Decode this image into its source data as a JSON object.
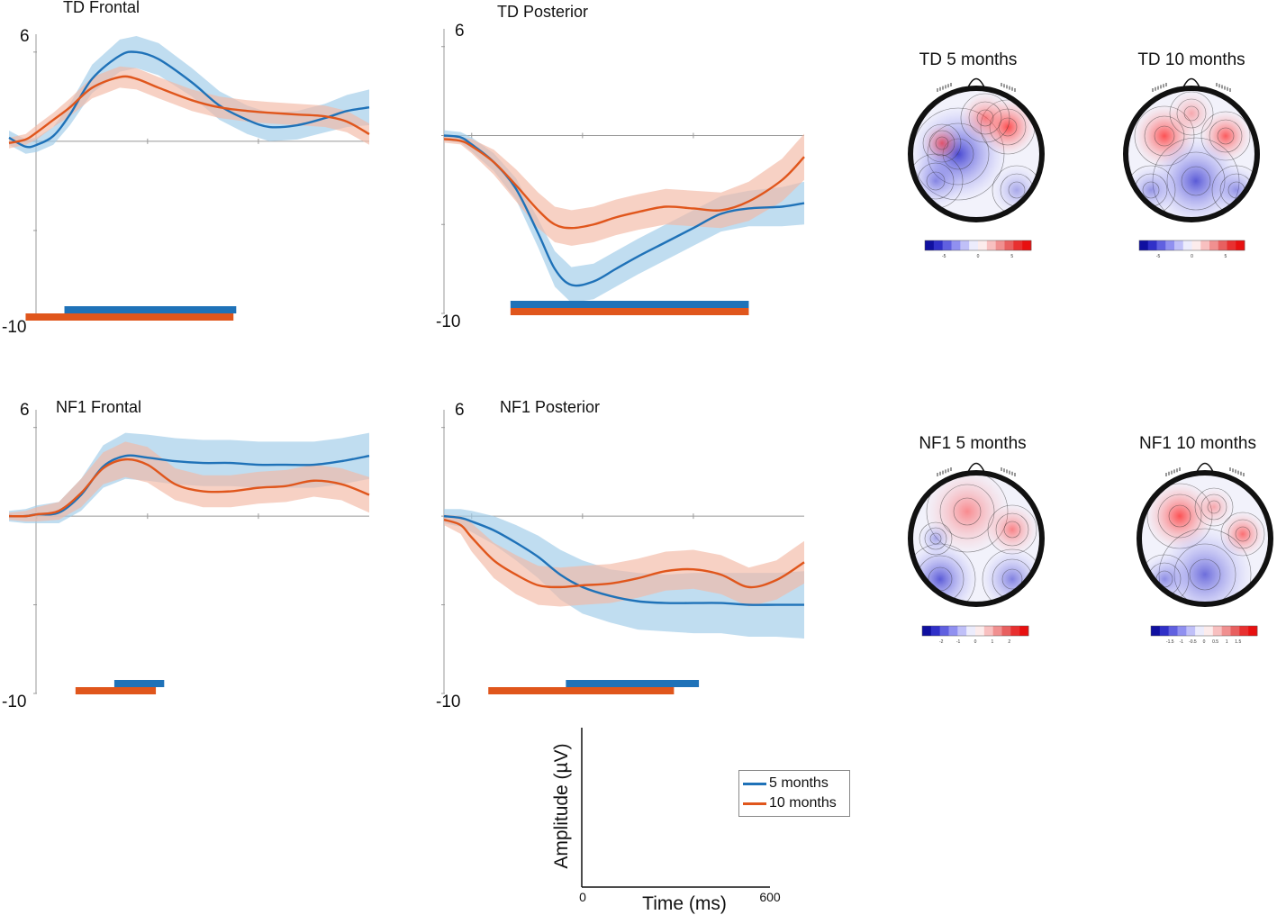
{
  "colors": {
    "five_months": "#1f72b8",
    "ten_months": "#e0561c",
    "five_months_band": "#9ecbe8",
    "ten_months_band": "#f3b9a4",
    "axis": "#999999"
  },
  "topo_titles": [
    "TD 5 months",
    "TD 10 months",
    "NF1 5 months",
    "NF1 10 months"
  ],
  "legend": {
    "five_months": "5 months",
    "ten_months": "10 months"
  },
  "scale_bar": {
    "ylabel": "Amplitude (µV)",
    "xlabel": "Time (ms)",
    "x_start": "0",
    "x_end": "600"
  },
  "chart_data": [
    {
      "type": "line",
      "title": "TD Frontal",
      "ymax_label": "6",
      "ymin_label": "-10",
      "ylim": [
        -10,
        6
      ],
      "xlim": [
        -50,
        600
      ],
      "series": [
        {
          "name": "5 months",
          "x": [
            -50,
            -20,
            0,
            30,
            60,
            100,
            150,
            180,
            220,
            280,
            330,
            380,
            420,
            470,
            520,
            560,
            600
          ],
          "y": [
            0.2,
            -0.3,
            -0.2,
            0.3,
            1.5,
            3.5,
            4.8,
            5.0,
            4.6,
            3.3,
            2.0,
            1.2,
            0.8,
            0.9,
            1.3,
            1.7,
            1.9
          ],
          "band": [
            0.4,
            0.4,
            0.4,
            0.5,
            0.6,
            0.8,
            0.9,
            0.9,
            0.9,
            0.8,
            0.8,
            0.8,
            0.8,
            0.8,
            0.8,
            0.9,
            1.0
          ]
        },
        {
          "name": "10 months",
          "x": [
            -50,
            -20,
            0,
            30,
            60,
            100,
            150,
            180,
            220,
            280,
            330,
            380,
            420,
            470,
            520,
            560,
            600
          ],
          "y": [
            -0.1,
            0.1,
            0.5,
            1.2,
            1.9,
            3.0,
            3.6,
            3.5,
            3.0,
            2.3,
            1.9,
            1.7,
            1.6,
            1.5,
            1.4,
            1.1,
            0.4
          ],
          "band": [
            0.3,
            0.3,
            0.4,
            0.4,
            0.5,
            0.6,
            0.6,
            0.6,
            0.6,
            0.6,
            0.6,
            0.6,
            0.6,
            0.6,
            0.6,
            0.6,
            0.6
          ]
        }
      ],
      "sig_bars": [
        {
          "series": "5 months",
          "start": 50,
          "end": 360
        },
        {
          "series": "10 months",
          "start": -20,
          "end": 355
        }
      ]
    },
    {
      "type": "line",
      "title": "TD Posterior",
      "ymax_label": "6",
      "ymin_label": "-10",
      "ylim": [
        -10,
        6
      ],
      "xlim": [
        -50,
        600
      ],
      "series": [
        {
          "name": "5 months",
          "x": [
            -50,
            -20,
            0,
            40,
            80,
            120,
            150,
            180,
            220,
            260,
            300,
            350,
            400,
            450,
            500,
            560,
            600
          ],
          "y": [
            0.0,
            -0.1,
            -0.5,
            -1.5,
            -3.0,
            -5.5,
            -7.5,
            -8.4,
            -8.2,
            -7.5,
            -6.8,
            -6.0,
            -5.2,
            -4.4,
            -4.1,
            -4.0,
            -3.8
          ],
          "band": [
            0.3,
            0.3,
            0.4,
            0.5,
            0.6,
            0.8,
            1.0,
            1.0,
            1.0,
            1.0,
            1.0,
            1.0,
            1.0,
            1.0,
            1.0,
            1.1,
            1.2
          ]
        },
        {
          "name": "10 months",
          "x": [
            -50,
            -20,
            0,
            40,
            80,
            120,
            150,
            180,
            220,
            260,
            300,
            350,
            400,
            450,
            500,
            560,
            600
          ],
          "y": [
            -0.2,
            -0.3,
            -0.6,
            -1.5,
            -2.8,
            -4.2,
            -5.0,
            -5.2,
            -5.0,
            -4.6,
            -4.3,
            -4.0,
            -4.1,
            -4.2,
            -3.7,
            -2.5,
            -1.2
          ],
          "band": [
            0.2,
            0.2,
            0.4,
            0.7,
            0.9,
            1.0,
            1.0,
            1.0,
            1.0,
            1.0,
            1.0,
            1.0,
            1.0,
            1.0,
            1.1,
            1.2,
            1.3
          ]
        }
      ],
      "sig_bars": [
        {
          "series": "5 months",
          "start": 70,
          "end": 500
        },
        {
          "series": "10 months",
          "start": 70,
          "end": 500
        }
      ]
    },
    {
      "type": "line",
      "title": "NF1 Frontal",
      "ymax_label": "6",
      "ymin_label": "-10",
      "ylim": [
        -10,
        6
      ],
      "xlim": [
        -50,
        600
      ],
      "series": [
        {
          "name": "5 months",
          "x": [
            -50,
            -20,
            0,
            40,
            80,
            120,
            160,
            200,
            250,
            300,
            350,
            400,
            450,
            500,
            550,
            600
          ],
          "y": [
            0.0,
            0.0,
            0.1,
            0.2,
            1.2,
            2.8,
            3.4,
            3.3,
            3.1,
            3.0,
            3.0,
            2.9,
            2.9,
            2.9,
            3.1,
            3.4
          ],
          "band": [
            0.3,
            0.4,
            0.5,
            0.6,
            0.9,
            1.2,
            1.3,
            1.3,
            1.3,
            1.3,
            1.3,
            1.3,
            1.3,
            1.3,
            1.3,
            1.3
          ]
        },
        {
          "name": "10 months",
          "x": [
            -50,
            -20,
            0,
            40,
            80,
            120,
            160,
            200,
            250,
            300,
            350,
            400,
            450,
            500,
            550,
            600
          ],
          "y": [
            0.0,
            0.0,
            0.1,
            0.3,
            1.3,
            2.7,
            3.2,
            2.9,
            1.8,
            1.4,
            1.4,
            1.6,
            1.7,
            2.0,
            1.8,
            1.2
          ],
          "band": [
            0.2,
            0.3,
            0.4,
            0.5,
            0.8,
            0.9,
            1.0,
            1.0,
            0.9,
            0.9,
            0.9,
            0.9,
            0.9,
            0.9,
            0.9,
            1.0
          ]
        }
      ],
      "sig_bars": [
        {
          "series": "5 months",
          "start": 140,
          "end": 230
        },
        {
          "series": "10 months",
          "start": 70,
          "end": 215
        }
      ]
    },
    {
      "type": "line",
      "title": "NF1 Posterior",
      "ymax_label": "6",
      "ymin_label": "-10",
      "ylim": [
        -10,
        6
      ],
      "xlim": [
        -50,
        600
      ],
      "series": [
        {
          "name": "5 months",
          "x": [
            -50,
            -20,
            0,
            40,
            80,
            120,
            160,
            200,
            250,
            300,
            350,
            400,
            450,
            500,
            550,
            600
          ],
          "y": [
            0.0,
            -0.1,
            -0.3,
            -0.8,
            -1.5,
            -2.3,
            -3.3,
            -4.0,
            -4.5,
            -4.8,
            -4.9,
            -4.9,
            -4.9,
            -5.0,
            -5.0,
            -5.0
          ],
          "band": [
            0.4,
            0.5,
            0.6,
            0.8,
            1.0,
            1.2,
            1.4,
            1.5,
            1.5,
            1.6,
            1.6,
            1.7,
            1.7,
            1.8,
            1.8,
            1.9
          ]
        },
        {
          "name": "10 months",
          "x": [
            -50,
            -20,
            0,
            40,
            80,
            120,
            160,
            200,
            250,
            300,
            350,
            400,
            450,
            500,
            550,
            600
          ],
          "y": [
            -0.2,
            -0.5,
            -1.2,
            -2.5,
            -3.3,
            -3.9,
            -4.0,
            -3.9,
            -3.8,
            -3.5,
            -3.1,
            -3.0,
            -3.3,
            -4.0,
            -3.6,
            -2.6
          ],
          "band": [
            0.3,
            0.5,
            0.8,
            1.0,
            1.1,
            1.1,
            1.1,
            1.1,
            1.1,
            1.1,
            1.1,
            1.1,
            1.1,
            1.1,
            1.1,
            1.2
          ]
        }
      ],
      "sig_bars": [
        {
          "series": "5 months",
          "start": 170,
          "end": 410
        },
        {
          "series": "10 months",
          "start": 30,
          "end": 365
        }
      ]
    }
  ],
  "colorbars": [
    {
      "ticks": [
        "-5",
        "0",
        "5"
      ]
    },
    {
      "ticks": [
        "-5",
        "0",
        "5"
      ]
    },
    {
      "ticks": [
        "-2",
        "-1",
        "0",
        "1",
        "2"
      ]
    },
    {
      "ticks": [
        "-1.5",
        "-1",
        "-0.5",
        "0",
        "0.5",
        "1",
        "1.5"
      ]
    }
  ]
}
